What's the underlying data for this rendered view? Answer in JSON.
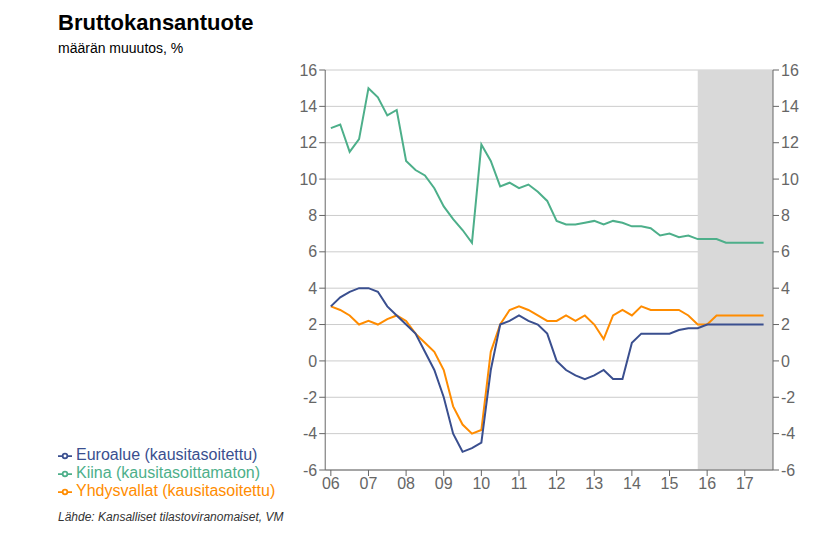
{
  "chart_data": {
    "type": "line",
    "title": "Bruttokansantuote",
    "subtitle": "määrän muuutos, %",
    "source": "Lähde: Kansalliset tilastoviranomaiset, VM",
    "x": [
      6.0,
      6.25,
      6.5,
      6.75,
      7.0,
      7.25,
      7.5,
      7.75,
      8.0,
      8.25,
      8.5,
      8.75,
      9.0,
      9.25,
      9.5,
      9.75,
      10.0,
      10.25,
      10.5,
      10.75,
      11.0,
      11.25,
      11.5,
      11.75,
      12.0,
      12.25,
      12.5,
      12.75,
      13.0,
      13.25,
      13.5,
      13.75,
      14.0,
      14.25,
      14.5,
      14.75,
      15.0,
      15.25,
      15.5,
      15.75,
      16.0,
      16.25,
      16.5,
      16.75,
      17.0,
      17.25,
      17.5
    ],
    "series": [
      {
        "name": "Kiina (kausitasoittamaton)",
        "color": "#4DAF8A",
        "values": [
          12.8,
          13.0,
          11.5,
          12.2,
          15.0,
          14.5,
          13.5,
          13.8,
          11.0,
          10.5,
          10.2,
          9.5,
          8.5,
          7.8,
          7.2,
          6.5,
          11.9,
          11.0,
          9.6,
          9.8,
          9.5,
          9.7,
          9.3,
          8.8,
          7.7,
          7.5,
          7.5,
          7.6,
          7.7,
          7.5,
          7.7,
          7.6,
          7.4,
          7.4,
          7.3,
          6.9,
          7.0,
          6.8,
          6.9,
          6.7,
          6.7,
          6.7,
          6.5,
          6.5,
          6.5,
          6.5,
          6.5
        ]
      },
      {
        "name": "Yhdysvallat (kausitasoitettu)",
        "color": "#FF8C00",
        "values": [
          3.0,
          2.8,
          2.5,
          2.0,
          2.2,
          2.0,
          2.3,
          2.5,
          2.2,
          1.5,
          1.0,
          0.5,
          -0.5,
          -2.5,
          -3.5,
          -4.0,
          -3.8,
          0.5,
          2.0,
          2.8,
          3.0,
          2.8,
          2.5,
          2.2,
          2.2,
          2.5,
          2.2,
          2.5,
          2.0,
          1.2,
          2.5,
          2.8,
          2.5,
          3.0,
          2.8,
          2.8,
          2.8,
          2.8,
          2.5,
          2.0,
          2.0,
          2.5,
          2.5,
          2.5,
          2.5,
          2.5,
          2.5
        ]
      },
      {
        "name": "Euroalue (kausitasoitettu)",
        "color": "#3A4F8F",
        "values": [
          3.0,
          3.5,
          3.8,
          4.0,
          4.0,
          3.8,
          3.0,
          2.5,
          2.0,
          1.5,
          0.5,
          -0.5,
          -2.0,
          -4.0,
          -5.0,
          -4.8,
          -4.5,
          -0.5,
          2.0,
          2.2,
          2.5,
          2.2,
          2.0,
          1.5,
          0.0,
          -0.5,
          -0.8,
          -1.0,
          -0.8,
          -0.5,
          -1.0,
          -1.0,
          1.0,
          1.5,
          1.5,
          1.5,
          1.5,
          1.7,
          1.8,
          1.8,
          2.0,
          2.0,
          2.0,
          2.0,
          2.0,
          2.0,
          2.0
        ]
      }
    ],
    "xlim": [
      5.85,
      17.75
    ],
    "xticks": [
      {
        "value": 6,
        "label": "06"
      },
      {
        "value": 7,
        "label": "07"
      },
      {
        "value": 8,
        "label": "08"
      },
      {
        "value": 9,
        "label": "09"
      },
      {
        "value": 10,
        "label": "10"
      },
      {
        "value": 11,
        "label": "11"
      },
      {
        "value": 12,
        "label": "12"
      },
      {
        "value": 13,
        "label": "13"
      },
      {
        "value": 14,
        "label": "14"
      },
      {
        "value": 15,
        "label": "15"
      },
      {
        "value": 16,
        "label": "16"
      },
      {
        "value": 17,
        "label": "17"
      }
    ],
    "ylim": [
      -6,
      16
    ],
    "yticks": [
      -6,
      -4,
      -2,
      0,
      2,
      4,
      6,
      8,
      10,
      12,
      14,
      16
    ],
    "y2lim": [
      -6,
      16
    ],
    "y2ticks": [
      -6,
      -4,
      -2,
      0,
      2,
      4,
      6,
      8,
      10,
      12,
      14,
      16
    ],
    "span": {
      "x": [
        15.75,
        17.75
      ],
      "color": "#d9d9d9"
    },
    "grid": true,
    "legend": "bottom"
  }
}
